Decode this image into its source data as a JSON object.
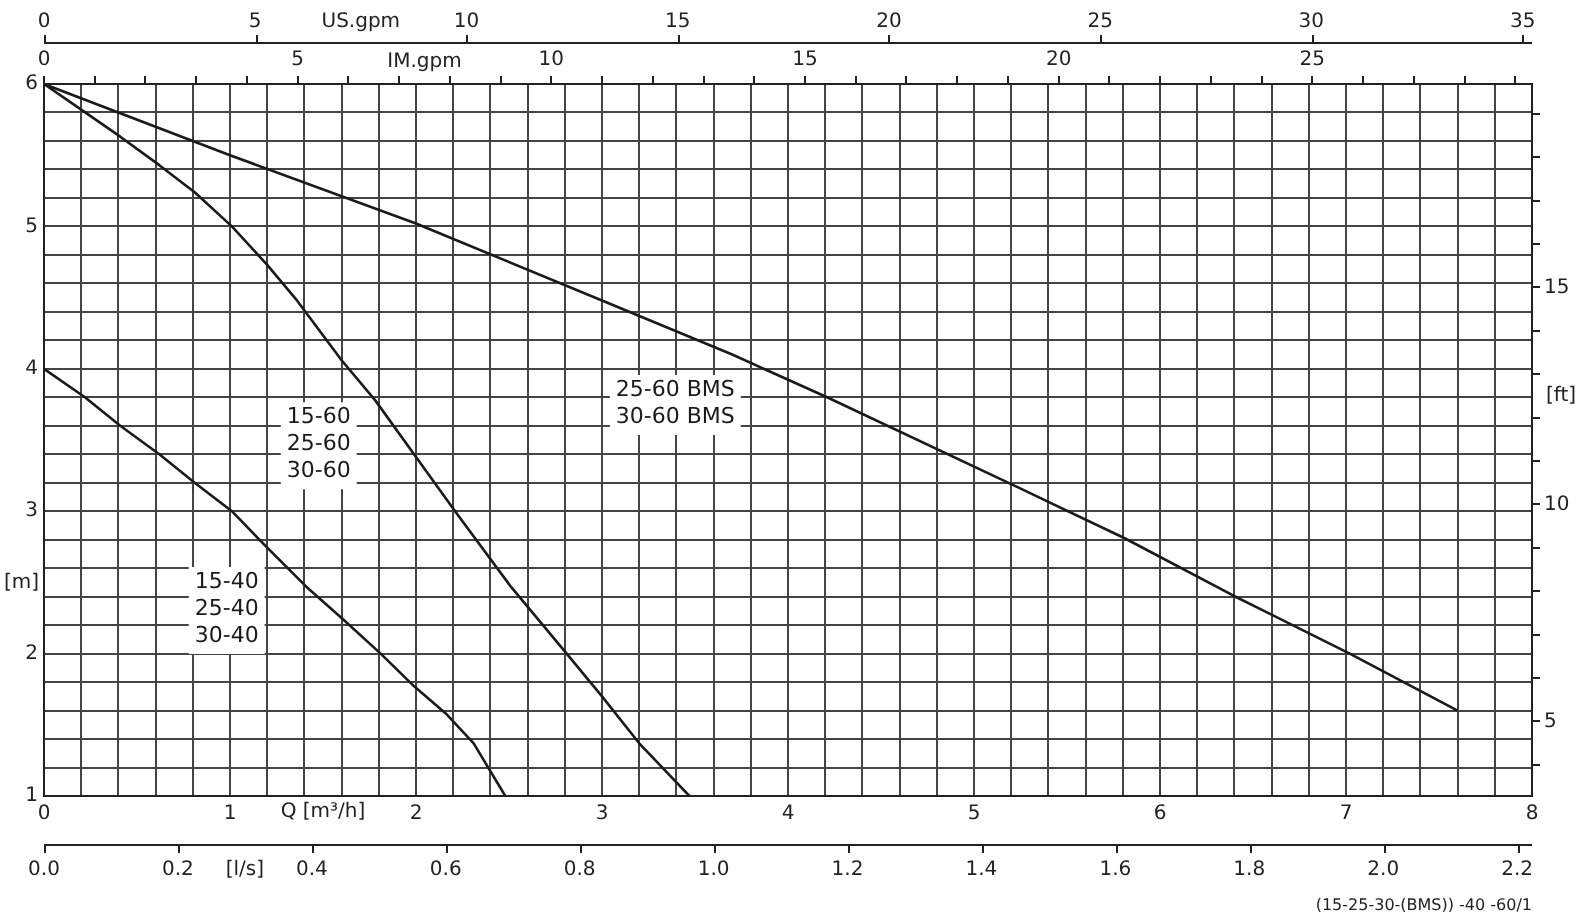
{
  "chart_data": {
    "type": "line",
    "xlabel": "Q [m³/h]",
    "ylabel": "[m]",
    "y2label": "[ft]",
    "x2label": "IM.gpm",
    "xlim": [
      0,
      8
    ],
    "xticks": [
      0,
      {
        "value": 0.2,
        "label": null
      },
      {
        "value": 0.4,
        "label": null
      },
      {
        "value": 0.6,
        "label": null
      },
      {
        "value": 0.8,
        "label": null
      },
      1,
      {
        "value": 1.2,
        "label": null
      },
      {
        "value": 1.4,
        "label": null
      },
      {
        "value": 1.6,
        "label": null
      },
      {
        "value": 1.8,
        "label": null
      },
      2,
      {
        "value": 2.2,
        "label": null
      },
      {
        "value": 2.4,
        "label": null
      },
      {
        "value": 2.6,
        "label": null
      },
      {
        "value": 2.8,
        "label": null
      },
      3,
      {
        "value": 3.2,
        "label": null
      },
      {
        "value": 3.4,
        "label": null
      },
      {
        "value": 3.6,
        "label": null
      },
      {
        "value": 3.8,
        "label": null
      },
      4,
      {
        "value": 4.2,
        "label": null
      },
      {
        "value": 4.4,
        "label": null
      },
      {
        "value": 4.6,
        "label": null
      },
      {
        "value": 4.8,
        "label": null
      },
      5,
      {
        "value": 5.2,
        "label": null
      },
      {
        "value": 5.4,
        "label": null
      },
      {
        "value": 5.6,
        "label": null
      },
      {
        "value": 5.8,
        "label": null
      },
      6,
      {
        "value": 6.2,
        "label": null
      },
      {
        "value": 6.4,
        "label": null
      },
      {
        "value": 6.6,
        "label": null
      },
      {
        "value": 6.8,
        "label": null
      },
      7,
      {
        "value": 7.2,
        "label": null
      },
      {
        "value": 7.4,
        "label": null
      },
      {
        "value": 7.6,
        "label": null
      },
      {
        "value": 7.8,
        "label": null
      },
      8
    ],
    "ylim": [
      1,
      6
    ],
    "yticks": [
      1,
      {
        "value": 1.2,
        "label": null
      },
      {
        "value": 1.4,
        "label": null
      },
      {
        "value": 1.6,
        "label": null
      },
      {
        "value": 1.8,
        "label": null
      },
      2,
      {
        "value": 2.2,
        "label": null
      },
      {
        "value": 2.4,
        "label": null
      },
      {
        "value": 2.6,
        "label": null
      },
      {
        "value": 2.8,
        "label": null
      },
      3,
      {
        "value": 3.2,
        "label": null
      },
      {
        "value": 3.4,
        "label": null
      },
      {
        "value": 3.6,
        "label": null
      },
      {
        "value": 3.8,
        "label": null
      },
      4,
      {
        "value": 4.2,
        "label": null
      },
      {
        "value": 4.4,
        "label": null
      },
      {
        "value": 4.6,
        "label": null
      },
      {
        "value": 4.8,
        "label": null
      },
      5,
      {
        "value": 5.2,
        "label": null
      },
      {
        "value": 5.4,
        "label": null
      },
      {
        "value": 5.6,
        "label": null
      },
      {
        "value": 5.8,
        "label": null
      },
      6
    ],
    "x2lim": [
      0,
      29.33
    ],
    "x2ticks": [
      0,
      {
        "value": 1,
        "label": null
      },
      {
        "value": 2,
        "label": null
      },
      {
        "value": 3,
        "label": null
      },
      {
        "value": 4,
        "label": null
      },
      5,
      {
        "value": 6,
        "label": null
      },
      {
        "value": 7,
        "label": null
      },
      {
        "value": 8,
        "label": null
      },
      {
        "value": 9,
        "label": null
      },
      10,
      {
        "value": 11,
        "label": null
      },
      {
        "value": 12,
        "label": null
      },
      {
        "value": 13,
        "label": null
      },
      {
        "value": 14,
        "label": null
      },
      15,
      {
        "value": 16,
        "label": null
      },
      {
        "value": 17,
        "label": null
      },
      {
        "value": 18,
        "label": null
      },
      {
        "value": 19,
        "label": null
      },
      20,
      {
        "value": 21,
        "label": null
      },
      {
        "value": 22,
        "label": null
      },
      {
        "value": 23,
        "label": null
      },
      {
        "value": 24,
        "label": null
      },
      25,
      {
        "value": 26,
        "label": null
      },
      {
        "value": 27,
        "label": null
      },
      {
        "value": 28,
        "label": null
      },
      {
        "value": 29,
        "label": null
      }
    ],
    "y2lim": [
      3.281,
      19.685
    ],
    "y2ticks": [
      {
        "value": 4,
        "label": null
      },
      5,
      {
        "value": 6,
        "label": null
      },
      {
        "value": 7,
        "label": null
      },
      {
        "value": 8,
        "label": null
      },
      {
        "value": 9,
        "label": null
      },
      10,
      {
        "value": 11,
        "label": null
      },
      {
        "value": 12,
        "label": null
      },
      {
        "value": 13,
        "label": null
      },
      {
        "value": 14,
        "label": null
      },
      15,
      {
        "value": 16,
        "label": null
      },
      {
        "value": 17,
        "label": null
      },
      {
        "value": 18,
        "label": null
      },
      {
        "value": 19,
        "label": null
      }
    ],
    "grid": true,
    "line_style": "solid",
    "annotations": [
      "0",
      "5",
      "US.gpm",
      "10",
      "15",
      "20",
      "25",
      "30",
      "35",
      "0.0",
      "0.2",
      "[l/s]",
      "0.4",
      "0.6",
      "0.8",
      "1.0",
      "1.2",
      "1.4",
      "1.6",
      "1.8",
      "2.0",
      "2.2",
      "(15-25-30-(BMS)) -40 -60/1"
    ],
    "series": [
      {
        "name": "15-40\n25-40\n30-40",
        "color": "#1a1a1a",
        "x": [
          0,
          0.22,
          0.41,
          0.62,
          0.81,
          1.01,
          1.18,
          1.41,
          1.6,
          1.81,
          1.99,
          2.16,
          2.31,
          2.48
        ],
        "values": [
          4.0,
          3.8,
          3.6,
          3.4,
          3.2,
          3.0,
          2.77,
          2.47,
          2.25,
          2.0,
          1.77,
          1.58,
          1.37,
          1.0
        ]
      },
      {
        "name": "15-60\n25-60\n30-60",
        "color": "#1a1a1a",
        "x": [
          0,
          0.2,
          0.41,
          0.62,
          0.81,
          1.01,
          1.2,
          1.36,
          1.6,
          1.78,
          2.0,
          2.21,
          2.51,
          2.81,
          3.0,
          3.2,
          3.47
        ],
        "values": [
          6.0,
          5.82,
          5.63,
          5.43,
          5.24,
          5.0,
          4.73,
          4.48,
          4.06,
          3.78,
          3.38,
          3.0,
          2.47,
          2.0,
          1.7,
          1.37,
          1.0
        ]
      },
      {
        "name": "25-60 BMS\n30-60 BMS",
        "color": "#1a1a1a",
        "x": [
          0,
          1.0,
          2.0,
          3.0,
          3.7,
          4.21,
          5.2,
          5.81,
          6.39,
          7.02,
          7.6
        ],
        "values": [
          6.0,
          5.5,
          5.02,
          4.48,
          4.1,
          3.8,
          3.19,
          2.81,
          2.41,
          2.0,
          1.6
        ]
      }
    ]
  }
}
